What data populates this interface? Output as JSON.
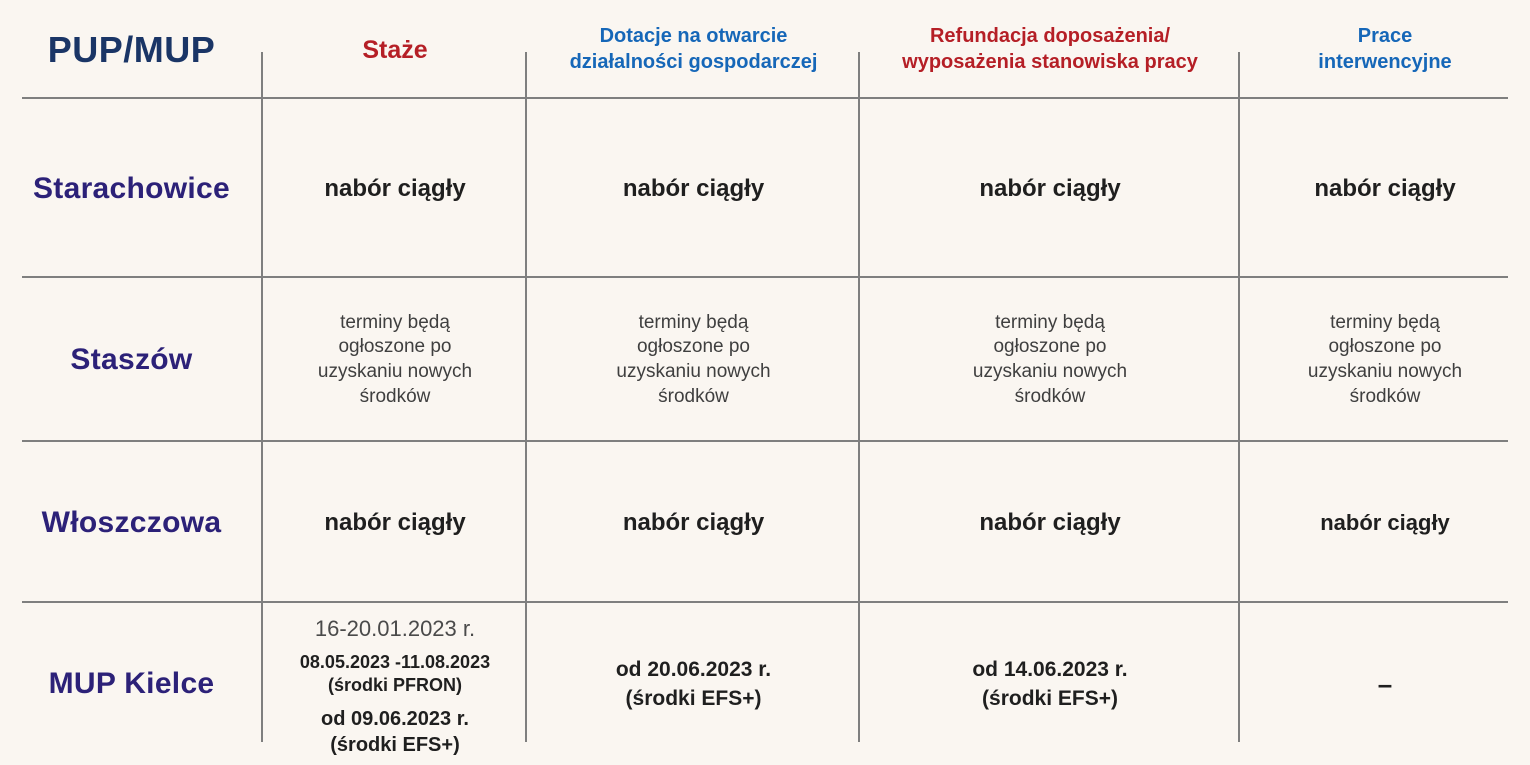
{
  "table": {
    "corner_label": "PUP/MUP",
    "columns": [
      {
        "label": "Staże",
        "accent": "#b51f26"
      },
      {
        "label": "Dotacje na otwarcie działalności gospodarczej",
        "accent": "#1667b8"
      },
      {
        "label": "Refundacja doposażenia/ wyposażenia stanowiska pracy",
        "accent": "#b51f26"
      },
      {
        "label": "Prace interwencyjne",
        "accent": "#1667b8"
      }
    ],
    "rows": [
      {
        "label": "Starachowice",
        "cells": [
          "nabór ciągły",
          "nabór ciągły",
          "nabór ciągły",
          "nabór ciągły"
        ]
      },
      {
        "label": "Staszów",
        "cells": [
          "terminy będą ogłoszone po uzyskaniu nowych środków",
          "terminy będą ogłoszone po uzyskaniu nowych środków",
          "terminy będą ogłoszone po uzyskaniu nowych środków",
          "terminy będą ogłoszone po uzyskaniu nowych środków"
        ]
      },
      {
        "label": "Włoszczowa",
        "cells": [
          "nabór ciągły",
          "nabór ciągły",
          "nabór ciągły",
          "nabór ciągły"
        ]
      },
      {
        "label": "MUP Kielce",
        "cells": [
          {
            "lines": [
              "16-20.01.2023 r.",
              "08.05.2023 -11.08.2023",
              "(środki PFRON)",
              "od 09.06.2023 r.",
              "(środki EFS+)"
            ]
          },
          {
            "lines": [
              "od 20.06.2023 r.",
              "(środki EFS+)"
            ]
          },
          {
            "lines": [
              "od 14.06.2023 r.",
              "(środki EFS+)"
            ]
          },
          {
            "text": "–"
          }
        ]
      }
    ]
  },
  "colors": {
    "background": "#faf6f1",
    "grid_line": "#7f7f7f",
    "header_navy": "#1a3566",
    "row_label_indigo": "#2c2178",
    "accent_red": "#b51f26",
    "accent_blue": "#1667b8",
    "cell_text": "#1f1f1f"
  }
}
